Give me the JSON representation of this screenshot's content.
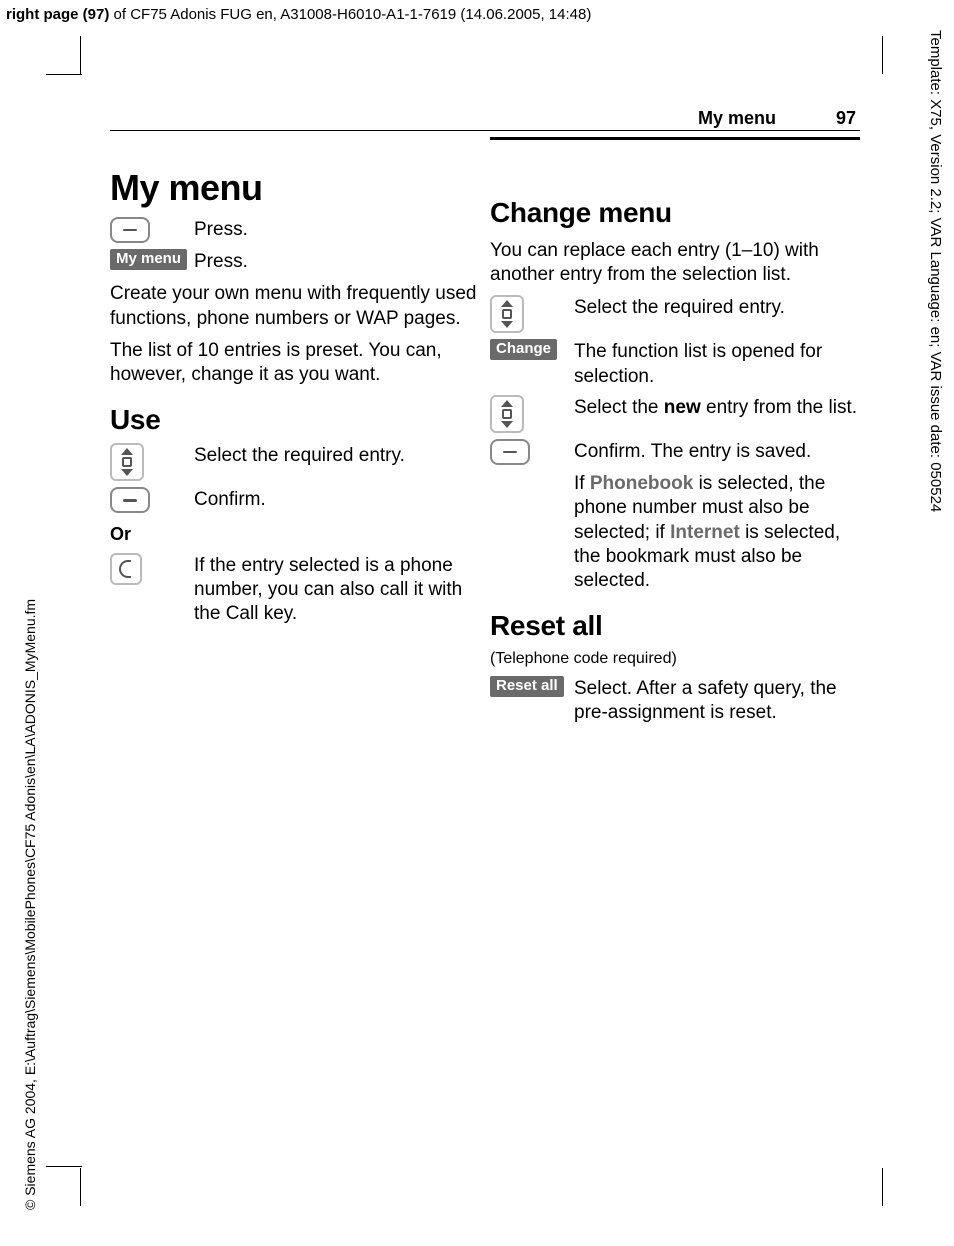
{
  "meta": {
    "top_header_bold": "right page (97)",
    "top_header_rest": " of CF75 Adonis FUG en, A31008-H6010-A1-1-7619 (14.06.2005, 14:48)",
    "side_left": "© Siemens AG 2004, E:\\Auftrag\\Siemens\\MobilePhones\\CF75 Adonis\\en\\LA\\ADONIS_MyMenu.fm",
    "side_right": "Template: X75, Version 2.2; VAR Language: en; VAR issue date: 050524",
    "running_title": "My menu",
    "page_number": "97"
  },
  "left": {
    "title": "My menu",
    "step1_text": "Press.",
    "step2_label": "My menu",
    "step2_text": "Press.",
    "para1": "Create your own menu with frequently used functions, phone numbers or WAP pages.",
    "para2": "The list of 10 entries is preset. You can, however, change it as you want.",
    "use_heading": "Use",
    "use_step1": "Select the required entry.",
    "use_step2": "Confirm.",
    "or_label": "Or",
    "use_step3": "If the entry selected is a phone number, you can also call it with the Call key."
  },
  "right": {
    "change_heading": "Change menu",
    "change_intro": "You can replace each entry (1–10) with another entry from the selection list.",
    "c1": "Select the required entry.",
    "c2_label": "Change",
    "c2": "The function list is opened for selection.",
    "c3_pre": "Select the ",
    "c3_bold": "new",
    "c3_post": " entry from the list.",
    "c4": "Confirm. The entry is saved.",
    "c5_pre": "If ",
    "c5_phonebook": "Phonebook",
    "c5_mid": " is selected, the phone number must also be selected; if ",
    "c5_internet": "Internet",
    "c5_post": " is selected, the bookmark must also be selected.",
    "reset_heading": "Reset all",
    "reset_sub": "(Telephone code required)",
    "reset_label": "Reset all",
    "reset_text": "Select. After a safety query, the pre-assignment is reset."
  }
}
